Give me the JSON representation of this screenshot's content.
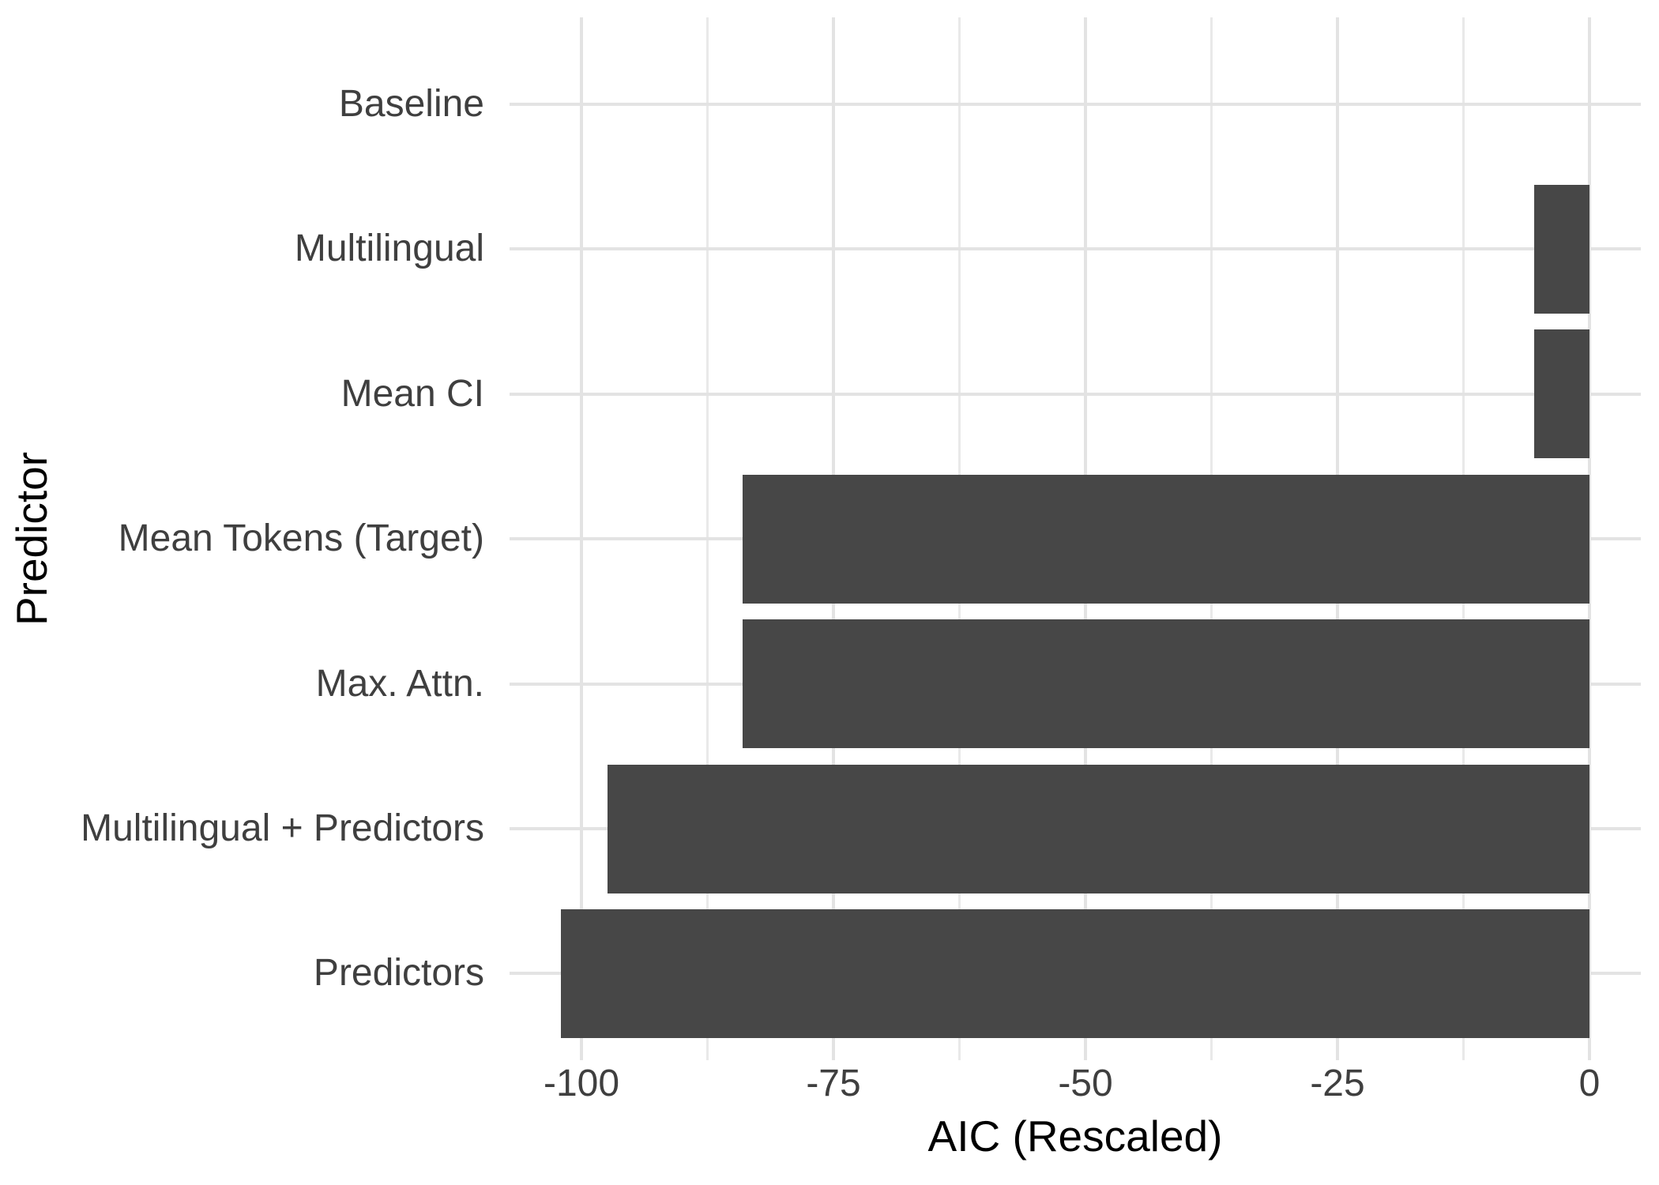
{
  "chart_data": {
    "type": "bar",
    "orientation": "horizontal",
    "title": "",
    "xlabel": "AIC (Rescaled)",
    "ylabel": "Predictor",
    "categories": [
      "Baseline",
      "Multilingual",
      "Mean CI",
      "Mean Tokens (Target)",
      "Max. Attn.",
      "Multilingual + Predictors",
      "Predictors"
    ],
    "values": [
      0,
      -5.5,
      -5.5,
      -84,
      -84,
      -97.4,
      -102
    ],
    "x_ticks": [
      "-100",
      "-75",
      "-50",
      "-25",
      "0"
    ],
    "x_tick_values": [
      -100,
      -75,
      -50,
      -25,
      0
    ],
    "x_minor_tick_values": [
      -87.5,
      -62.5,
      -37.5,
      -12.5
    ],
    "xlim": [
      -107.1,
      5.1
    ],
    "legend_position": "none",
    "grid": "major and minor vertical, major horizontal",
    "colors": {
      "bar": "#474747",
      "grid_major": "#e3e3e3",
      "grid_minor": "#e9e9e9",
      "axis_text": "#3f3f3f",
      "axis_title": "#000000",
      "background": "#ffffff"
    }
  }
}
